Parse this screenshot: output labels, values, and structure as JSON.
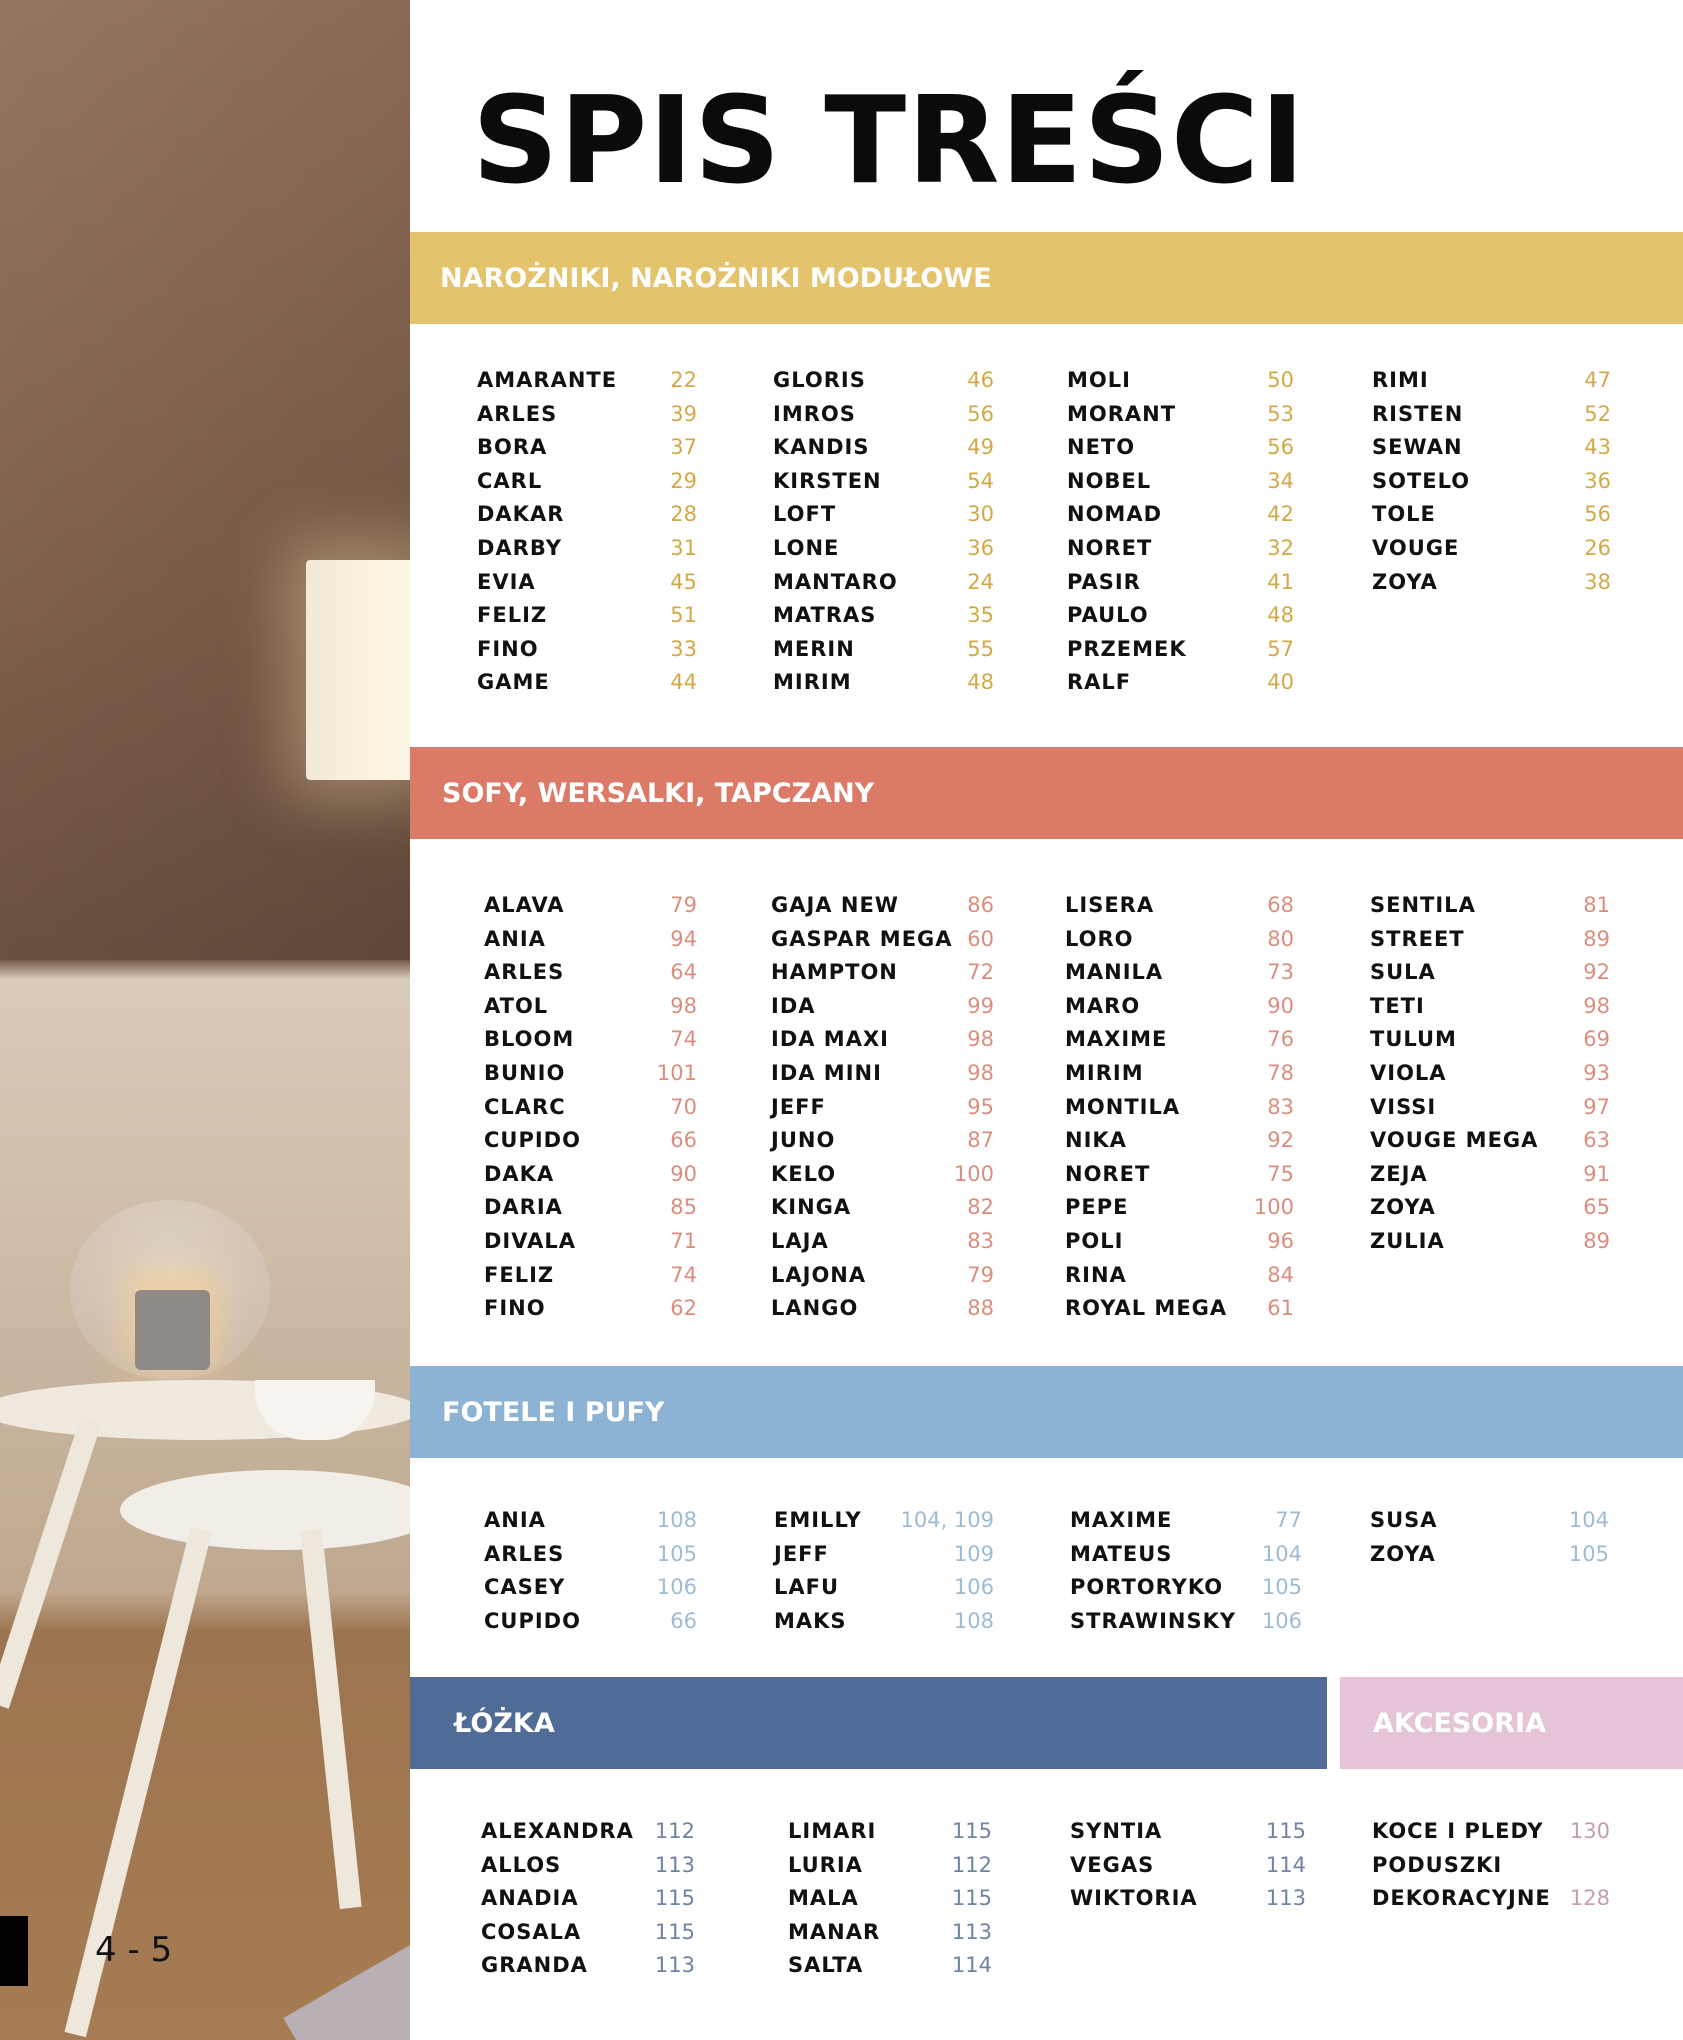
{
  "title": "SPIS TREŚCI",
  "page_number": "4 - 5",
  "sections": [
    {
      "heading": "NAROŻNIKI, NAROŻNIKI MODUŁOWE",
      "color": "#e3c36b",
      "number_color": "#d2a945",
      "columns": [
        [
          {
            "name": "AMARANTE",
            "page": "22"
          },
          {
            "name": "ARLES",
            "page": "39"
          },
          {
            "name": "BORA",
            "page": "37"
          },
          {
            "name": "CARL",
            "page": "29"
          },
          {
            "name": "DAKAR",
            "page": "28"
          },
          {
            "name": "DARBY",
            "page": "31"
          },
          {
            "name": "EVIA",
            "page": "45"
          },
          {
            "name": "FELIZ",
            "page": "51"
          },
          {
            "name": "FINO",
            "page": "33"
          },
          {
            "name": "GAME",
            "page": "44"
          }
        ],
        [
          {
            "name": "GLORIS",
            "page": "46"
          },
          {
            "name": "IMROS",
            "page": "56"
          },
          {
            "name": "KANDIS",
            "page": "49"
          },
          {
            "name": "KIRSTEN",
            "page": "54"
          },
          {
            "name": "LOFT",
            "page": "30"
          },
          {
            "name": "LONE",
            "page": "36"
          },
          {
            "name": "MANTARO",
            "page": "24"
          },
          {
            "name": "MATRAS",
            "page": "35"
          },
          {
            "name": "MERIN",
            "page": "55"
          },
          {
            "name": "MIRIM",
            "page": "48"
          }
        ],
        [
          {
            "name": "MOLI",
            "page": "50"
          },
          {
            "name": "MORANT",
            "page": "53"
          },
          {
            "name": "NETO",
            "page": "56"
          },
          {
            "name": "NOBEL",
            "page": "34"
          },
          {
            "name": "NOMAD",
            "page": "42"
          },
          {
            "name": "NORET",
            "page": "32"
          },
          {
            "name": "PASIR",
            "page": "41"
          },
          {
            "name": "PAULO",
            "page": "48"
          },
          {
            "name": "PRZEMEK",
            "page": "57"
          },
          {
            "name": "RALF",
            "page": "40"
          }
        ],
        [
          {
            "name": "RIMI",
            "page": "47"
          },
          {
            "name": "RISTEN",
            "page": "52"
          },
          {
            "name": "SEWAN",
            "page": "43"
          },
          {
            "name": "SOTELO",
            "page": "36"
          },
          {
            "name": "TOLE",
            "page": "56"
          },
          {
            "name": "VOUGE",
            "page": "26"
          },
          {
            "name": "ZOYA",
            "page": "38"
          }
        ]
      ]
    },
    {
      "heading": "SOFY, WERSALKI, TAPCZANY",
      "color": "#dc7a68",
      "number_color": "#d98e7e",
      "columns": [
        [
          {
            "name": "ALAVA",
            "page": "79"
          },
          {
            "name": "ANIA",
            "page": "94"
          },
          {
            "name": "ARLES",
            "page": "64"
          },
          {
            "name": "ATOL",
            "page": "98"
          },
          {
            "name": "BLOOM",
            "page": "74"
          },
          {
            "name": "BUNIO",
            "page": "101"
          },
          {
            "name": "CLARC",
            "page": "70"
          },
          {
            "name": "CUPIDO",
            "page": "66"
          },
          {
            "name": "DAKA",
            "page": "90"
          },
          {
            "name": "DARIA",
            "page": "85"
          },
          {
            "name": "DIVALA",
            "page": "71"
          },
          {
            "name": "FELIZ",
            "page": "74"
          },
          {
            "name": "FINO",
            "page": "62"
          }
        ],
        [
          {
            "name": "GAJA NEW",
            "page": "86"
          },
          {
            "name": "GASPAR MEGA",
            "page": "60"
          },
          {
            "name": "HAMPTON",
            "page": "72"
          },
          {
            "name": "IDA",
            "page": "99"
          },
          {
            "name": "IDA MAXI",
            "page": "98"
          },
          {
            "name": "IDA MINI",
            "page": "98"
          },
          {
            "name": "JEFF",
            "page": "95"
          },
          {
            "name": "JUNO",
            "page": "87"
          },
          {
            "name": "KELO",
            "page": "100"
          },
          {
            "name": "KINGA",
            "page": "82"
          },
          {
            "name": "LAJA",
            "page": "83"
          },
          {
            "name": "LAJONA",
            "page": "79"
          },
          {
            "name": "LANGO",
            "page": "88"
          }
        ],
        [
          {
            "name": "LISERA",
            "page": "68"
          },
          {
            "name": "LORO",
            "page": "80"
          },
          {
            "name": "MANILA",
            "page": "73"
          },
          {
            "name": "MARO",
            "page": "90"
          },
          {
            "name": "MAXIME",
            "page": "76"
          },
          {
            "name": "MIRIM",
            "page": "78"
          },
          {
            "name": "MONTILA",
            "page": "83"
          },
          {
            "name": "NIKA",
            "page": "92"
          },
          {
            "name": "NORET",
            "page": "75"
          },
          {
            "name": "PEPE",
            "page": "100"
          },
          {
            "name": "POLI",
            "page": "96"
          },
          {
            "name": "RINA",
            "page": "84"
          },
          {
            "name": "ROYAL MEGA",
            "page": "61"
          }
        ],
        [
          {
            "name": "SENTILA",
            "page": "81"
          },
          {
            "name": "STREET",
            "page": "89"
          },
          {
            "name": "SULA",
            "page": "92"
          },
          {
            "name": "TETI",
            "page": "98"
          },
          {
            "name": "TULUM",
            "page": "69"
          },
          {
            "name": "VIOLA",
            "page": "93"
          },
          {
            "name": "VISSI",
            "page": "97"
          },
          {
            "name": "VOUGE MEGA",
            "page": "63"
          },
          {
            "name": "ZEJA",
            "page": "91"
          },
          {
            "name": "ZOYA",
            "page": "65"
          },
          {
            "name": "ZULIA",
            "page": "89"
          }
        ]
      ]
    },
    {
      "heading": "FOTELE I PUFY",
      "color": "#8cb3d4",
      "number_color": "#9dbbd4",
      "columns": [
        [
          {
            "name": "ANIA",
            "page": "108"
          },
          {
            "name": "ARLES",
            "page": "105"
          },
          {
            "name": "CASEY",
            "page": "106"
          },
          {
            "name": "CUPIDO",
            "page": "66"
          }
        ],
        [
          {
            "name": "EMILLY",
            "page": "104, 109"
          },
          {
            "name": "JEFF",
            "page": "109"
          },
          {
            "name": "LAFU",
            "page": "106"
          },
          {
            "name": "MAKS",
            "page": "108"
          }
        ],
        [
          {
            "name": "MAXIME",
            "page": "77"
          },
          {
            "name": "MATEUS",
            "page": "104"
          },
          {
            "name": "PORTORYKO",
            "page": "105"
          },
          {
            "name": "STRAWINSKY",
            "page": "106"
          }
        ],
        [
          {
            "name": "SUSA",
            "page": "104"
          },
          {
            "name": "ZOYA",
            "page": "105"
          }
        ]
      ]
    },
    {
      "heading": "ŁÓŻKA",
      "color": "#4f6b96",
      "number_color": "#6f84a4",
      "columns": [
        [
          {
            "name": "ALEXANDRA",
            "page": "112"
          },
          {
            "name": "ALLOS",
            "page": "113"
          },
          {
            "name": "ANADIA",
            "page": "115"
          },
          {
            "name": "COSALA",
            "page": "115"
          },
          {
            "name": "GRANDA",
            "page": "113"
          }
        ],
        [
          {
            "name": "LIMARI",
            "page": "115"
          },
          {
            "name": "LURIA",
            "page": "112"
          },
          {
            "name": "MALA",
            "page": "115"
          },
          {
            "name": "MANAR",
            "page": "113"
          },
          {
            "name": "SALTA",
            "page": "114"
          }
        ],
        [
          {
            "name": "SYNTIA",
            "page": "115"
          },
          {
            "name": "VEGAS",
            "page": "114"
          },
          {
            "name": "WIKTORIA",
            "page": "113"
          }
        ]
      ]
    },
    {
      "heading": "AKCESORIA",
      "color": "#e4c4d6",
      "number_color": "#c59cb1",
      "columns": [
        [
          {
            "name": "KOCE I PLEDY",
            "page": "130"
          },
          {
            "name": "PODUSZKI",
            "page": ""
          },
          {
            "name": "DEKORACYJNE",
            "page": "128"
          }
        ]
      ]
    }
  ]
}
